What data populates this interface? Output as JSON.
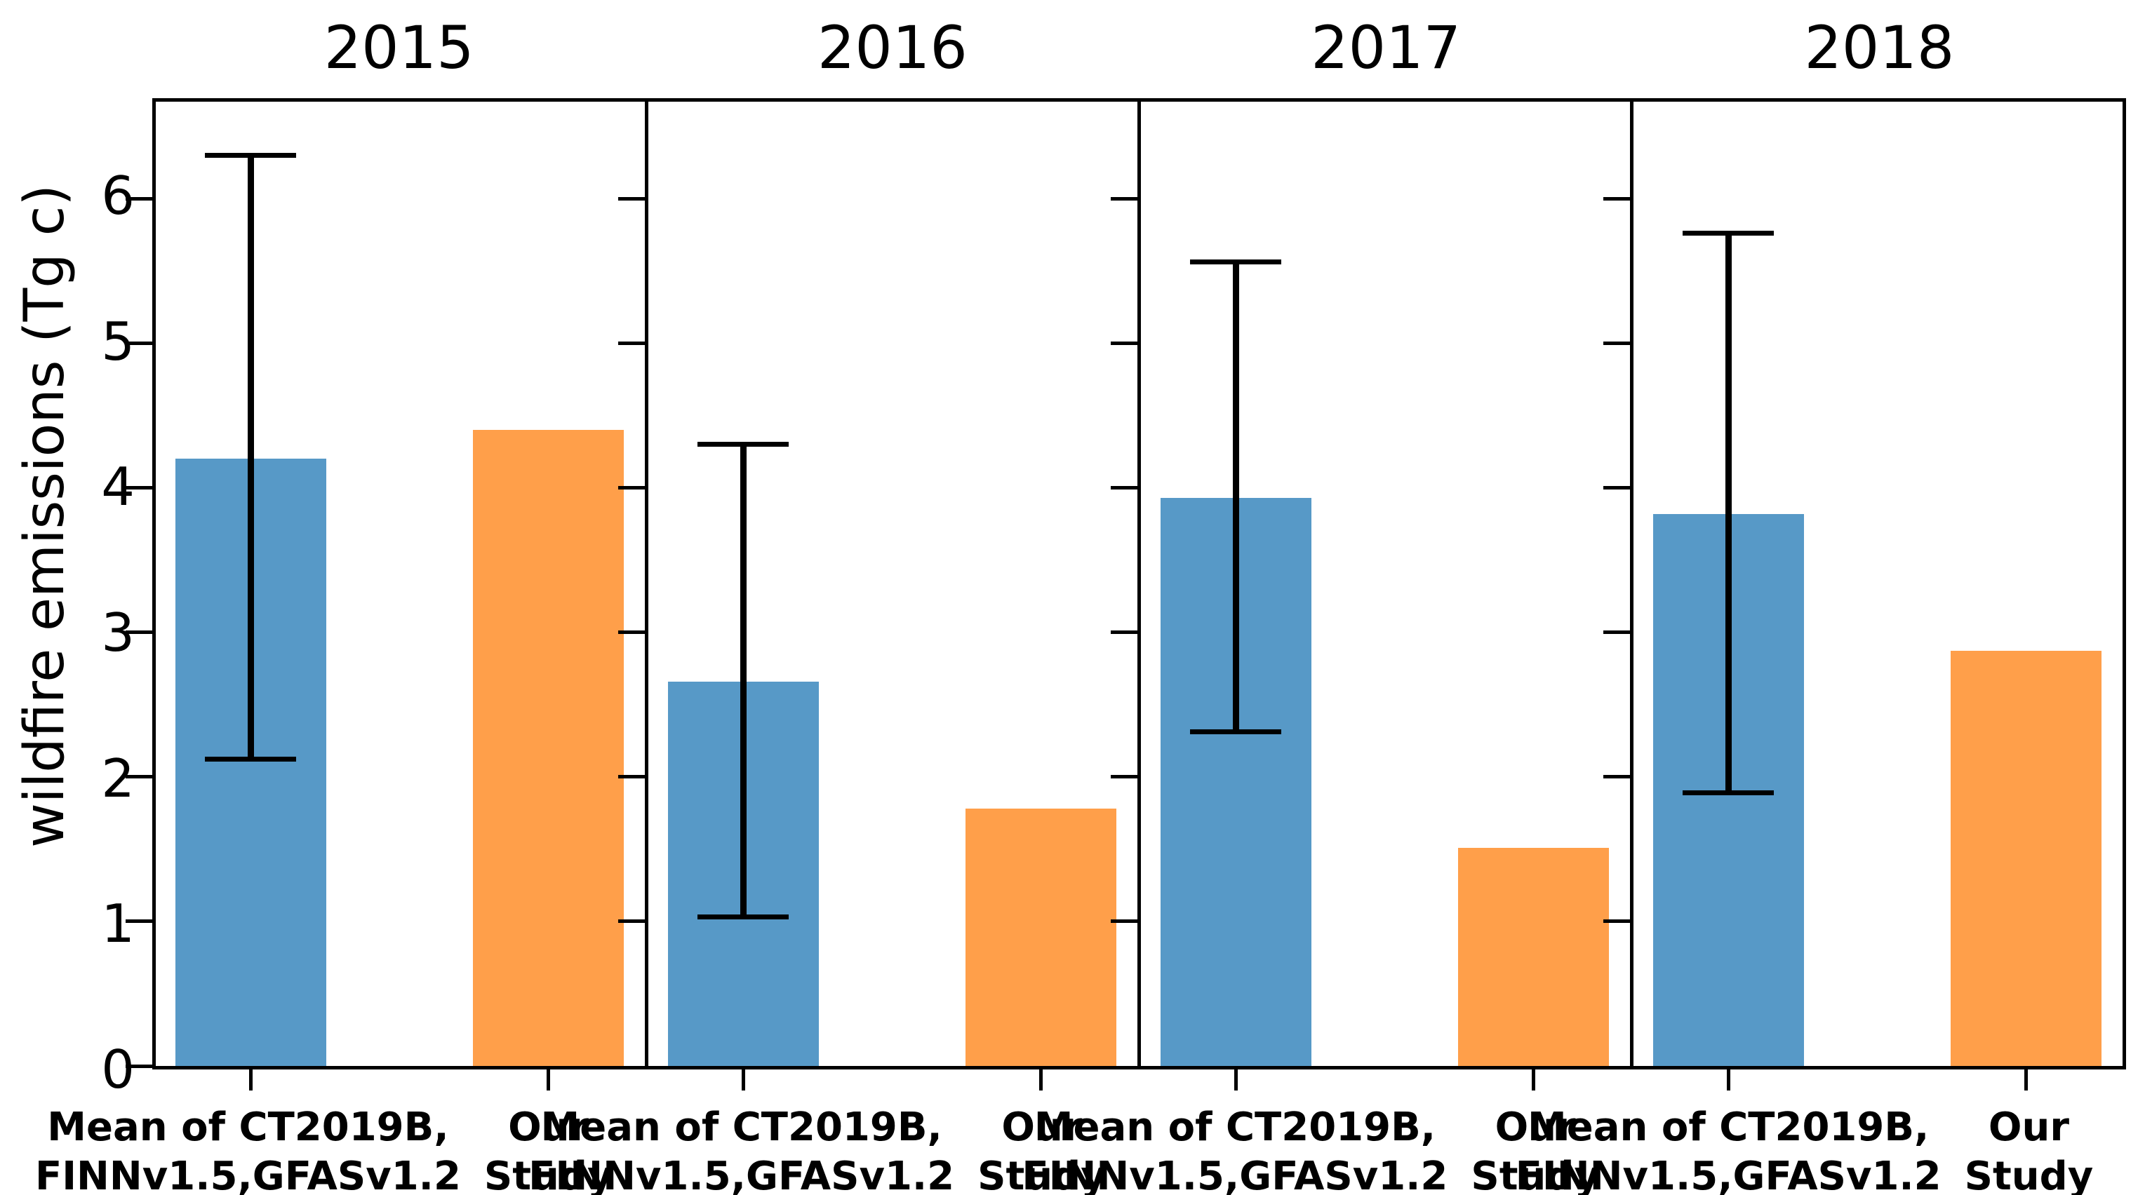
{
  "figure": {
    "background": "#ffffff",
    "axis_color": "#000000"
  },
  "chart_data": {
    "type": "bar",
    "title": "",
    "ylabel": "wildfire emissions (Tg c)",
    "xlabel": "",
    "ylim": [
      0,
      6.67
    ],
    "yticks": [
      0,
      1,
      2,
      3,
      4,
      5,
      6
    ],
    "grid": false,
    "legend": "none",
    "bar_labels": {
      "mean": "Mean of CT2019B,\nFINNv1.5,GFASv1.2",
      "our_study": "Our\nStudy"
    },
    "colors": {
      "mean_bar": "#5799c7",
      "our_study_bar": "#ff9f4a",
      "error_bar": "#000000"
    },
    "panels": [
      {
        "title": "2015",
        "series": [
          {
            "name": "Mean of CT2019B,\nFINNv1.5,GFASv1.2",
            "value": 4.2,
            "error_low": 2.12,
            "error_high": 6.3
          },
          {
            "name": "Our\nStudy",
            "value": 4.4
          }
        ]
      },
      {
        "title": "2016",
        "series": [
          {
            "name": "Mean of CT2019B,\nFINNv1.5,GFASv1.2",
            "value": 2.66,
            "error_low": 1.03,
            "error_high": 4.3
          },
          {
            "name": "Our\nStudy",
            "value": 1.78
          }
        ]
      },
      {
        "title": "2017",
        "series": [
          {
            "name": "Mean of CT2019B,\nFINNv1.5,GFASv1.2",
            "value": 3.93,
            "error_low": 2.31,
            "error_high": 5.56
          },
          {
            "name": "Our\nStudy",
            "value": 1.51
          }
        ]
      },
      {
        "title": "2018",
        "series": [
          {
            "name": "Mean of CT2019B,\nFINNv1.5,GFASv1.2",
            "value": 3.82,
            "error_low": 1.89,
            "error_high": 5.76
          },
          {
            "name": "Our\nStudy",
            "value": 2.87
          }
        ]
      }
    ]
  }
}
